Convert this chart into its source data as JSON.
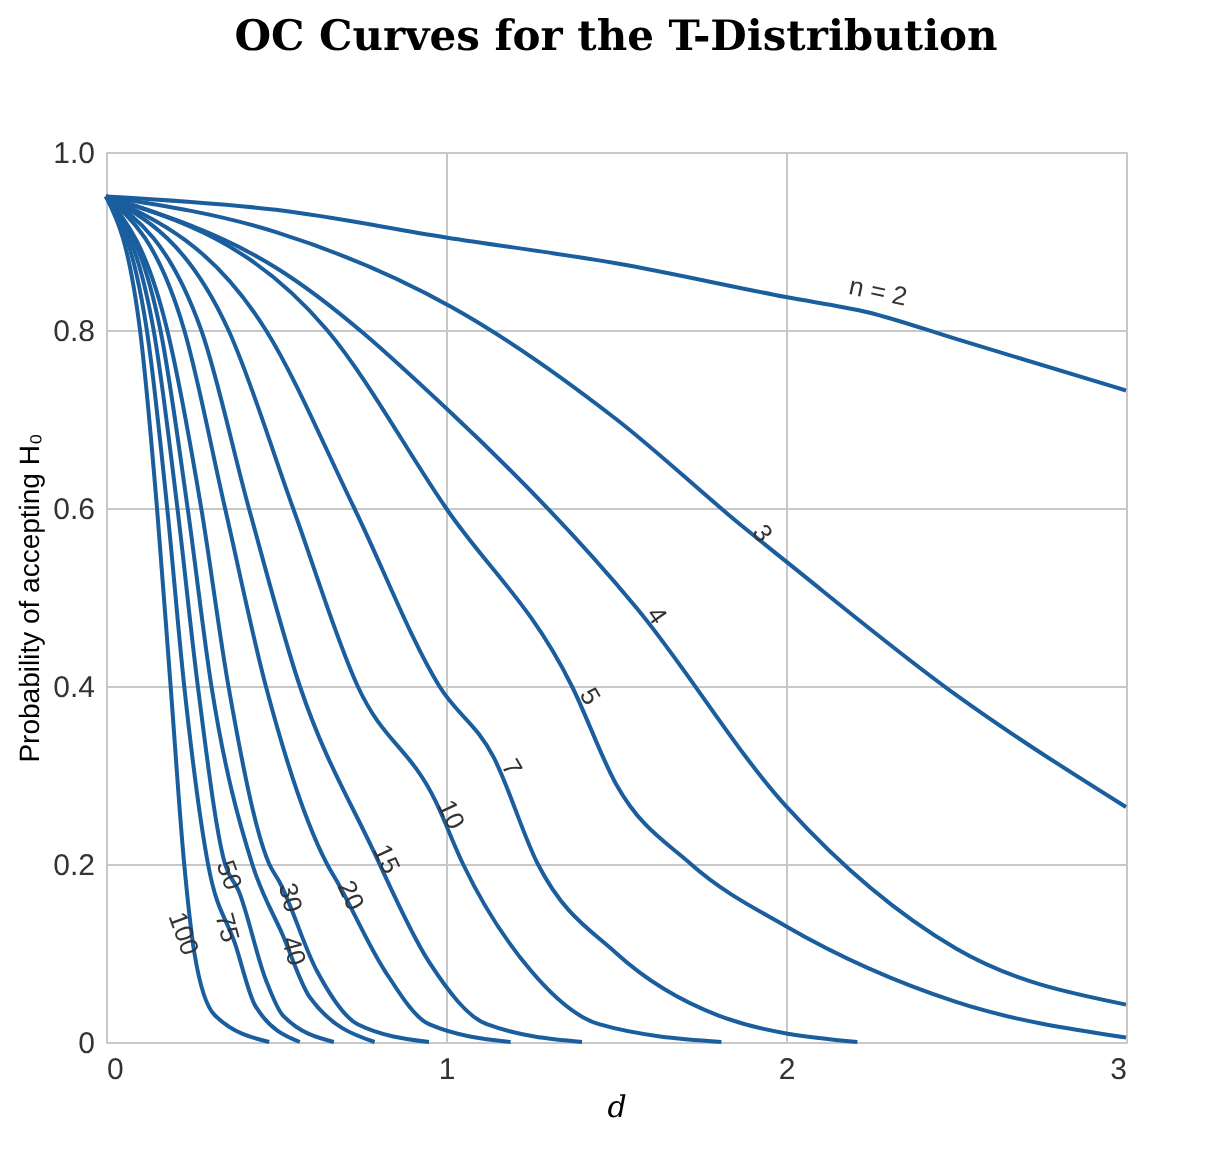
{
  "chart_data": {
    "type": "line",
    "title": "OC Curves for the T-Distribution",
    "xlabel": "d",
    "ylabel": "Probability of accepting H₀",
    "xlim": [
      0,
      3
    ],
    "ylim": [
      0,
      1
    ],
    "xticks": [
      0,
      1,
      2,
      3
    ],
    "yticks": [
      0,
      0.2,
      0.4,
      0.6,
      0.8,
      {
        "value": 1,
        "label": "1.0"
      }
    ],
    "grid": true,
    "line_style": "solid",
    "marker": "none",
    "series": [
      {
        "color": "#1a5e9e",
        "x": [
          0,
          0.5,
          1.0,
          1.5,
          2.0,
          2.24,
          2.5,
          3.0
        ],
        "values": [
          0.95,
          0.935,
          0.904,
          0.875,
          0.837,
          0.82,
          0.79,
          0.732
        ]
      },
      {
        "color": "#1a5e9e",
        "x": [
          0,
          0.5,
          1.02,
          1.5,
          1.87,
          2.0,
          2.5,
          3.0
        ],
        "values": [
          0.95,
          0.91,
          0.825,
          0.7,
          0.58,
          0.54,
          0.39,
          0.264
        ]
      },
      {
        "color": "#1a5e9e",
        "x": [
          0,
          0.5,
          1.02,
          1.56,
          2.0,
          2.5,
          3.0
        ],
        "values": [
          0.95,
          0.87,
          0.705,
          0.488,
          0.265,
          0.105,
          0.042
        ]
      },
      {
        "color": "#1a5e9e",
        "x": [
          0,
          0.65,
          1.0,
          1.37,
          1.5,
          1.72,
          2.0,
          2.5,
          3.0
        ],
        "values": [
          0.95,
          0.8,
          0.6,
          0.4,
          0.29,
          0.2,
          0.13,
          0.045,
          0.005
        ]
      },
      {
        "color": "#1a5e9e",
        "x": [
          0,
          0.47,
          0.73,
          0.98,
          1.14,
          1.27,
          1.5,
          1.8,
          2.21
        ],
        "values": [
          0.95,
          0.8,
          0.6,
          0.4,
          0.32,
          0.2,
          0.1,
          0.03,
          0
        ]
      },
      {
        "color": "#1a5e9e",
        "x": [
          0,
          0.36,
          0.55,
          0.74,
          0.97,
          1.05,
          1.25,
          1.45,
          1.81
        ],
        "values": [
          0.95,
          0.8,
          0.6,
          0.4,
          0.27,
          0.2,
          0.08,
          0.02,
          0
        ]
      },
      {
        "color": "#1a5e9e",
        "x": [
          0,
          0.28,
          0.42,
          0.57,
          0.78,
          0.95,
          1.12,
          1.4
        ],
        "values": [
          0.95,
          0.8,
          0.6,
          0.4,
          0.22,
          0.09,
          0.02,
          0
        ]
      },
      {
        "color": "#1a5e9e",
        "x": [
          0,
          0.23,
          0.35,
          0.47,
          0.65,
          0.68,
          0.82,
          0.95,
          1.19
        ],
        "values": [
          0.95,
          0.8,
          0.6,
          0.4,
          0.2,
          0.18,
          0.08,
          0.02,
          0
        ]
      },
      {
        "color": "#1a5e9e",
        "x": [
          0,
          0.18,
          0.28,
          0.36,
          0.48,
          0.51,
          0.62,
          0.74,
          0.95
        ],
        "values": [
          0.95,
          0.8,
          0.6,
          0.4,
          0.2,
          0.18,
          0.08,
          0.02,
          0
        ]
      },
      {
        "color": "#1a5e9e",
        "x": [
          0,
          0.16,
          0.24,
          0.31,
          0.43,
          0.52,
          0.6,
          0.79
        ],
        "values": [
          0.95,
          0.8,
          0.6,
          0.4,
          0.2,
          0.12,
          0.05,
          0
        ]
      },
      {
        "color": "#1a5e9e",
        "x": [
          0,
          0.14,
          0.21,
          0.27,
          0.35,
          0.39,
          0.47,
          0.52,
          0.67
        ],
        "values": [
          0.95,
          0.8,
          0.6,
          0.4,
          0.2,
          0.17,
          0.07,
          0.03,
          0
        ]
      },
      {
        "color": "#1a5e9e",
        "x": [
          0,
          0.12,
          0.18,
          0.23,
          0.3,
          0.38,
          0.44,
          0.57
        ],
        "values": [
          0.95,
          0.8,
          0.6,
          0.4,
          0.2,
          0.11,
          0.04,
          0
        ]
      },
      {
        "color": "#1a5e9e",
        "x": [
          0,
          0.1,
          0.15,
          0.19,
          0.23,
          0.26,
          0.32,
          0.48
        ],
        "values": [
          0.95,
          0.8,
          0.6,
          0.4,
          0.2,
          0.1,
          0.03,
          0
        ]
      }
    ],
    "annotations": [
      {
        "text": "n = 2",
        "x": 2.24,
        "y": 0.82
      },
      {
        "text": "3",
        "x": 1.87,
        "y": 0.58
      },
      {
        "text": "4",
        "x": 1.56,
        "y": 0.488
      },
      {
        "text": "5",
        "x": 1.37,
        "y": 0.4
      },
      {
        "text": "7",
        "x": 1.14,
        "y": 0.32
      },
      {
        "text": "10",
        "x": 0.97,
        "y": 0.27
      },
      {
        "text": "15",
        "x": 0.78,
        "y": 0.22
      },
      {
        "text": "20",
        "x": 0.68,
        "y": 0.18
      },
      {
        "text": "30",
        "x": 0.51,
        "y": 0.18
      },
      {
        "text": "40",
        "x": 0.52,
        "y": 0.12
      },
      {
        "text": "50",
        "x": 0.39,
        "y": 0.17
      },
      {
        "text": "75",
        "x": 0.38,
        "y": 0.11
      },
      {
        "text": "100",
        "x": 0.26,
        "y": 0.1
      }
    ]
  }
}
